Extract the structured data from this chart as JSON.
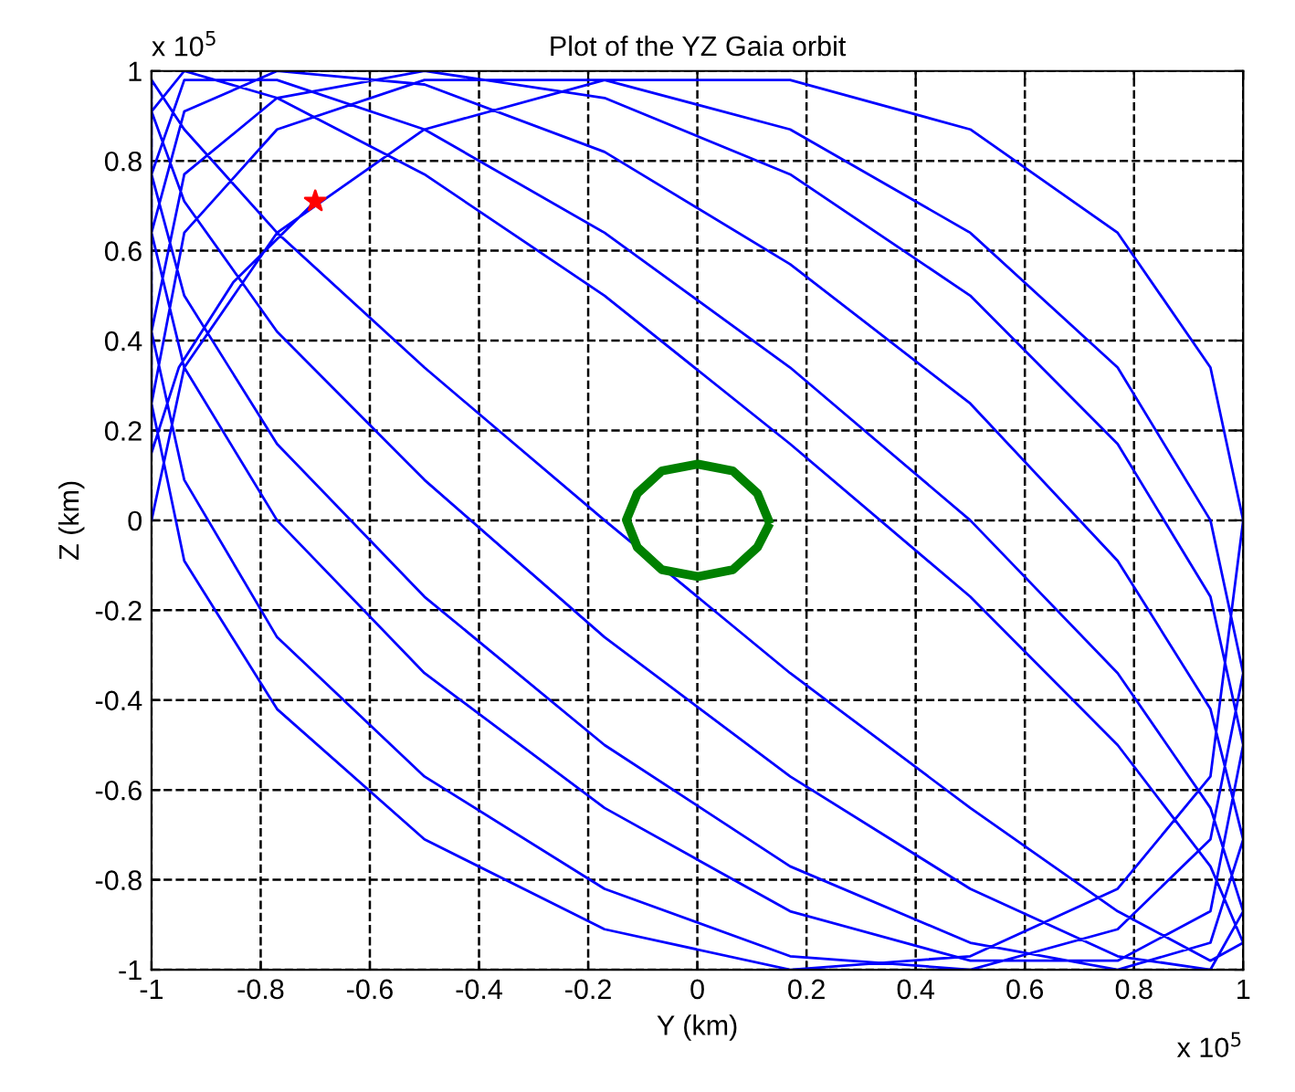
{
  "chart_data": {
    "type": "line",
    "title": "Plot of the YZ Gaia orbit",
    "xlabel": "Y (km)",
    "ylabel": "Z (km)",
    "annotations": [
      "x 10$^{5}$",
      "x 10$^{5}$"
    ],
    "xlim": [
      -1,
      1
    ],
    "ylim": [
      -1,
      1
    ],
    "xticks": [
      -1,
      -0.8,
      -0.6,
      -0.4,
      -0.2,
      0,
      0.2,
      0.4,
      0.6,
      0.8,
      1
    ],
    "yticks": [
      -1,
      -0.8,
      -0.6,
      -0.4,
      -0.2,
      0,
      0.2,
      0.4,
      0.6,
      0.8,
      1
    ],
    "grid": true,
    "line_style": "solid",
    "series": [
      {
        "type": "line",
        "color": "#0000ff",
        "marker": "none",
        "x": [
          -0.7,
          -0.85,
          -0.95,
          -1.0,
          -1,
          -0.94,
          -0.77,
          -0.5,
          -0.17,
          0.17,
          0.5,
          0.77,
          0.94,
          1,
          0.94,
          0.77,
          0.5,
          0.17,
          -0.17,
          -0.5,
          -0.77,
          -0.94,
          -1,
          -0.94,
          -0.77,
          -0.5,
          -0.17,
          0.17,
          0.5,
          0.77,
          0.94,
          1,
          0.94,
          0.77,
          0.5,
          0.17,
          -0.17,
          -0.5,
          -0.77,
          -0.94,
          -1,
          -0.94,
          -0.77,
          -0.5,
          -0.17,
          0.17,
          0.5,
          0.77,
          0.94,
          1,
          0.94,
          0.77,
          0.5,
          0.17,
          -0.17,
          -0.5,
          -0.77,
          -0.94,
          -1,
          -0.94,
          -0.77,
          -0.5,
          -0.17,
          0.17,
          0.5,
          0.77,
          0.94,
          1,
          0.94,
          0.77,
          0.5,
          0.17,
          -0.17,
          -0.5,
          -0.77,
          -0.94,
          -1,
          -0.94,
          -0.77,
          -0.5,
          -0.17,
          0.17,
          0.5,
          0.77,
          0.94,
          1,
          0.94,
          0.77,
          0.5,
          0.17,
          -0.17,
          -0.5,
          -0.77,
          -0.94,
          -1,
          -0.94,
          -0.77,
          -0.5,
          -0.17,
          0.17,
          0.5,
          0.77,
          0.94,
          1,
          0.94,
          0.77,
          0.5,
          0.17,
          -0.17,
          -0.5,
          -0.77,
          -0.94,
          -1
        ],
        "values": [
          0.71,
          0.53,
          0.34,
          0.15,
          0.98,
          0.87,
          0.64,
          0.34,
          0,
          -0.34,
          -0.64,
          -0.87,
          -0.98,
          -0.94,
          -0.77,
          -0.5,
          -0.17,
          0.17,
          0.5,
          0.77,
          0.94,
          1,
          0.91,
          0.71,
          0.42,
          0.09,
          -0.26,
          -0.57,
          -0.82,
          -0.97,
          -1,
          -0.87,
          -0.64,
          -0.34,
          0,
          0.34,
          0.64,
          0.87,
          0.98,
          0.98,
          0.77,
          0.5,
          0.17,
          -0.17,
          -0.5,
          -0.77,
          -0.94,
          -1,
          -0.94,
          -0.71,
          -0.42,
          -0.09,
          0.26,
          0.57,
          0.82,
          0.97,
          1,
          0.91,
          0.64,
          0.34,
          0,
          -0.34,
          -0.64,
          -0.87,
          -0.98,
          -0.98,
          -0.87,
          -0.5,
          -0.17,
          0.17,
          0.5,
          0.77,
          0.94,
          1,
          0.94,
          0.77,
          0.42,
          0.09,
          -0.26,
          -0.57,
          -0.82,
          -0.97,
          -1,
          -0.91,
          -0.71,
          -0.34,
          0,
          0.34,
          0.64,
          0.87,
          0.98,
          0.98,
          0.87,
          0.64,
          0.26,
          -0.09,
          -0.42,
          -0.71,
          -0.91,
          -1,
          -0.97,
          -0.82,
          -0.57,
          0,
          0.34,
          0.64,
          0.87,
          0.98,
          0.98,
          0.87,
          0.64,
          0.34,
          0
        ]
      },
      {
        "type": "line",
        "color": "#008000",
        "marker": "none",
        "x": [
          0.13,
          0.11,
          0.065,
          0.001,
          -0.065,
          -0.11,
          -0.13,
          -0.11,
          -0.065,
          0.001,
          0.065,
          0.11,
          0.129
        ],
        "values": [
          0.001,
          0.06,
          0.11,
          0.125,
          0.11,
          0.06,
          0.001,
          -0.06,
          -0.11,
          -0.125,
          -0.11,
          -0.06,
          -0.015
        ]
      },
      {
        "type": "scatter",
        "color": "#ff0000",
        "marker": "star",
        "x": [
          -0.7
        ],
        "values": [
          0.71
        ]
      }
    ]
  }
}
